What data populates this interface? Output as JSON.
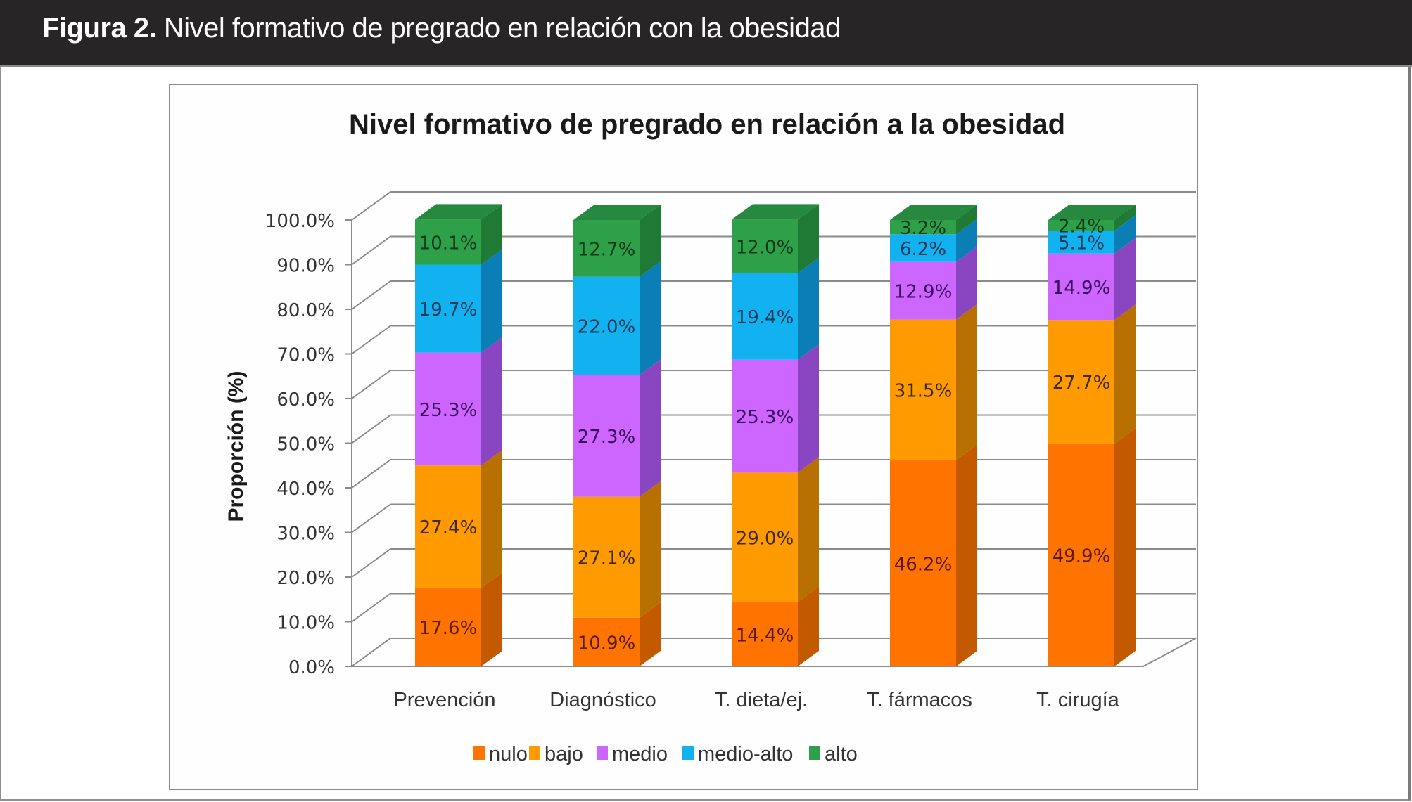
{
  "figure": {
    "label": "Figura 2.",
    "caption": "Nivel formativo de pregrado en relación con la obesidad"
  },
  "chart_data": {
    "type": "bar",
    "subtype": "stacked-3d-percent",
    "title": "Nivel formativo de pregrado en relación a la obesidad",
    "xlabel": "",
    "ylabel": "Proporción (%)",
    "ylim": [
      0,
      100
    ],
    "yticks": [
      "0.0%",
      "10.0%",
      "20.0%",
      "30.0%",
      "40.0%",
      "50.0%",
      "60.0%",
      "70.0%",
      "80.0%",
      "90.0%",
      "100.0%"
    ],
    "grid": true,
    "legend_position": "bottom",
    "categories": [
      "Prevención",
      "Diagnóstico",
      "T. dieta/ej.",
      "T. fármacos",
      "T. cirugía"
    ],
    "series": [
      {
        "name": "nulo",
        "color": "#FF7400",
        "side": "#C45A00",
        "label_color": "#5a1a0a",
        "values": [
          17.6,
          10.9,
          14.4,
          46.2,
          49.9
        ]
      },
      {
        "name": "bajo",
        "color": "#FF9A00",
        "side": "#B87000",
        "label_color": "#3d2a10",
        "values": [
          27.4,
          27.1,
          29.0,
          31.5,
          27.7
        ]
      },
      {
        "name": "medio",
        "color": "#CC66FF",
        "side": "#8A45C0",
        "label_color": "#3b0a5a",
        "values": [
          25.3,
          27.3,
          25.3,
          12.9,
          14.9
        ]
      },
      {
        "name": "medio-alto",
        "color": "#12B2F0",
        "side": "#0B7FB5",
        "label_color": "#123a5a",
        "values": [
          19.7,
          22.0,
          19.4,
          6.2,
          5.1
        ]
      },
      {
        "name": "alto",
        "color": "#2EA04A",
        "side": "#1E7A34",
        "label_color": "#0f3a1a",
        "values": [
          10.1,
          12.7,
          12.0,
          3.2,
          2.4
        ]
      }
    ],
    "value_labels": [
      [
        "17.6%",
        "10.9%",
        "14.4%",
        "",
        ""
      ],
      [
        "27.4%",
        "27.1%",
        "29.0%",
        "31.5%",
        "27.7%"
      ],
      [
        "25.3%",
        "27.3%",
        "25.3%",
        "12.9%",
        "14.9%"
      ],
      [
        "19.7%",
        "22.0%",
        "19.4%",
        "6.2%",
        "5.1%"
      ],
      [
        "10.1%",
        "12.7%",
        "12.0%",
        "3.2%",
        "2.4%"
      ]
    ],
    "nulo_center_labels": [
      "",
      "",
      "",
      "46.2%",
      "49.9%"
    ]
  }
}
